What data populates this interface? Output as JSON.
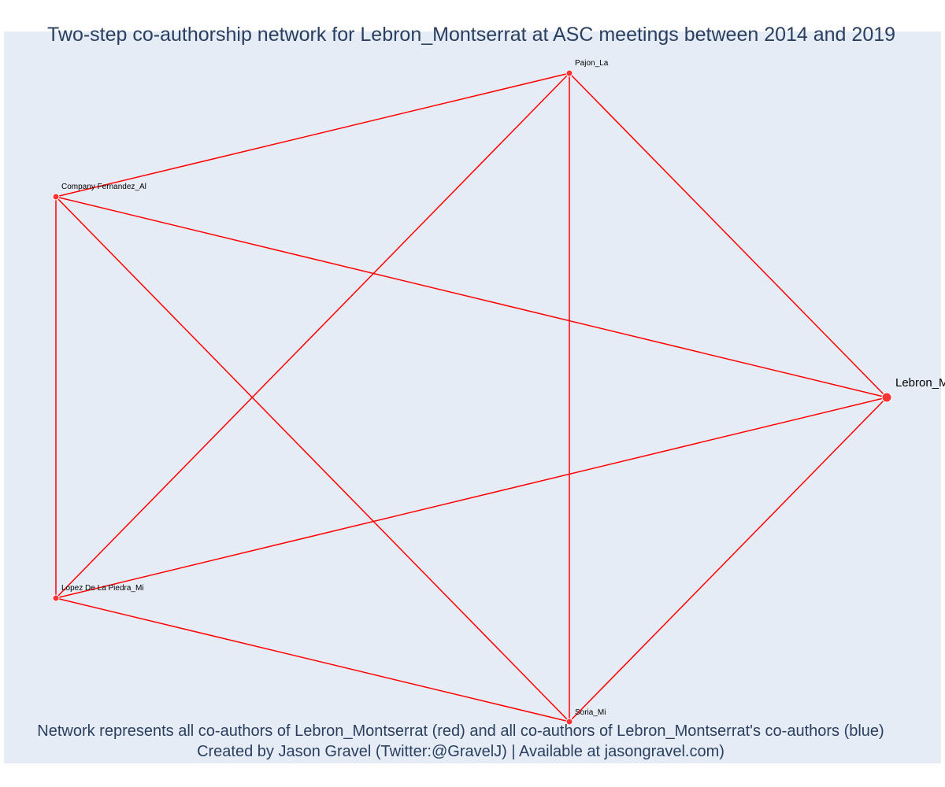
{
  "title": "Two-step co-authorship network for Lebron_Montserrat at ASC meetings between 2014 and 2019",
  "footer": {
    "line1": "Network represents all co-authors of Lebron_Montserrat (red) and all co-authors of Lebron_Montserrat's co-authors (blue)",
    "line2": "Created by Jason Gravel (Twitter:@GravelJ) | Available at jasongravel.com)"
  },
  "colors": {
    "edge": "#ff0000",
    "node": "#ff3333",
    "background": "#e5ecf6",
    "title": "#2a3f5f"
  },
  "nodes": [
    {
      "id": "pajon",
      "label": "Pajon_La"
    },
    {
      "id": "company",
      "label": "Company Fernandez_Al"
    },
    {
      "id": "lebron",
      "label": "Lebron_M"
    },
    {
      "id": "lopez",
      "label": "Lopez De La Piedra_Mi"
    },
    {
      "id": "soria",
      "label": "Soria_Mi"
    }
  ],
  "edges": [
    [
      "company",
      "pajon"
    ],
    [
      "pajon",
      "lebron"
    ],
    [
      "pajon",
      "lopez"
    ],
    [
      "pajon",
      "soria"
    ],
    [
      "company",
      "lebron"
    ],
    [
      "company",
      "lopez"
    ],
    [
      "company",
      "soria"
    ],
    [
      "lopez",
      "lebron"
    ],
    [
      "lopez",
      "soria"
    ],
    [
      "soria",
      "lebron"
    ]
  ]
}
